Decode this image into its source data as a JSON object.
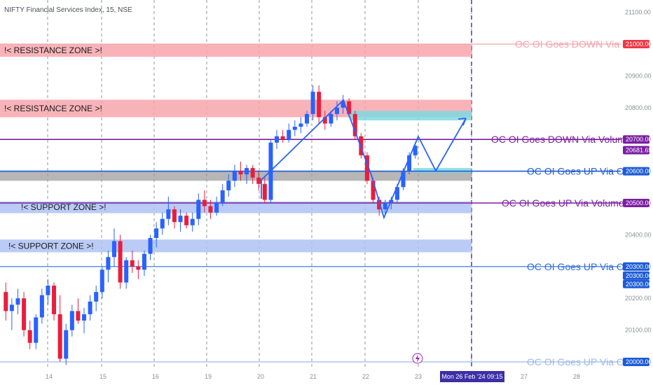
{
  "title": "NIFTY Financial Services Index, 15, NSE",
  "chart_data": {
    "type": "candlestick",
    "symbol": "NIFTY Financial Services Index",
    "interval": "15",
    "exchange": "NSE",
    "ylim": [
      20000,
      21150
    ],
    "y_ticks": [
      20000,
      20100,
      20200,
      20300,
      20400,
      20500,
      20600,
      20700,
      20800,
      20900,
      21000,
      21100
    ],
    "x_tick_labels": [
      "14",
      "15",
      "16",
      "19",
      "20",
      "21",
      "22",
      "23",
      "27",
      "28"
    ],
    "cursor_date_label": "Mon 26 Feb '24   09:15",
    "zones": [
      {
        "label": "!< RESISTANCE ZONE >!",
        "top": 21000,
        "bottom": 20960,
        "color": "#f7a6ad"
      },
      {
        "label": "!< RESISTANCE ZONE >!",
        "top": 20825,
        "bottom": 20770,
        "color": "#f7a6ad"
      },
      {
        "label": "!< SUPPORT ZONE >!",
        "top": 20505,
        "bottom": 20468,
        "color": "#aec2f5"
      },
      {
        "label": "!< SUPPORT ZONE >!",
        "top": 20385,
        "bottom": 20345,
        "color": "#aec2f5"
      }
    ],
    "levels": [
      {
        "label": "OC OI Goes DOWN Via OI",
        "value": 21000.0,
        "tag": "21000.00",
        "color": "#f4a3aa",
        "tag_color": "#f23645"
      },
      {
        "label": "OC OI Goes DOWN Via Volume",
        "value": 20700.0,
        "tag": "20700.00",
        "color": "#7b1fa2",
        "tag_color": "#7b1fa2"
      },
      {
        "label": "OC OI Goes UP  Via OI",
        "value": 20600.0,
        "tag": "20600.00",
        "color": "#1e5bd6",
        "tag_color": "#1e5bd6"
      },
      {
        "label": "OC OI Goes UP  Via Volume",
        "value": 20500.0,
        "tag": "20500.00",
        "color": "#7b1fa2",
        "tag_color": "#7b1fa2"
      },
      {
        "label": "OC OI Goes UP  Via OI",
        "value": 20300.0,
        "tag": "20300.00",
        "color": "#2d6be0",
        "tag_color": "#1e5bd6"
      },
      {
        "label": "OC OI Goes UP  Via OI",
        "value": 20000.0,
        "tag": "20000.00",
        "color": "#9db7ea",
        "tag_color": "#1e5bd6"
      }
    ],
    "last_price_tag": "20681.65",
    "extra_price_tags": [
      "20300.00",
      "20300.00"
    ],
    "candles_ohlc": [
      [
        20220,
        20250,
        20130,
        20160
      ],
      [
        20160,
        20200,
        20100,
        20180
      ],
      [
        20180,
        20230,
        20150,
        20200
      ],
      [
        20200,
        20220,
        20080,
        20100
      ],
      [
        20100,
        20130,
        20040,
        20060
      ],
      [
        20060,
        20150,
        20040,
        20140
      ],
      [
        20140,
        20230,
        20120,
        20210
      ],
      [
        20210,
        20260,
        20180,
        20240
      ],
      [
        20240,
        20250,
        20130,
        20150
      ],
      [
        20150,
        20210,
        20000,
        20010
      ],
      [
        20010,
        20120,
        19990,
        20100
      ],
      [
        20100,
        20180,
        20080,
        20160
      ],
      [
        20160,
        20200,
        20120,
        20130
      ],
      [
        20130,
        20170,
        20090,
        20150
      ],
      [
        20150,
        20210,
        20130,
        20190
      ],
      [
        20190,
        20240,
        20160,
        20220
      ],
      [
        20220,
        20300,
        20200,
        20290
      ],
      [
        20290,
        20350,
        20250,
        20330
      ],
      [
        20330,
        20420,
        20300,
        20380
      ],
      [
        20380,
        20400,
        20230,
        20250
      ],
      [
        20250,
        20330,
        20230,
        20320
      ],
      [
        20320,
        20350,
        20280,
        20300
      ],
      [
        20300,
        20320,
        20260,
        20290
      ],
      [
        20290,
        20350,
        20270,
        20340
      ],
      [
        20340,
        20400,
        20320,
        20390
      ],
      [
        20390,
        20440,
        20360,
        20420
      ],
      [
        20420,
        20470,
        20400,
        20450
      ],
      [
        20450,
        20520,
        20430,
        20480
      ],
      [
        20480,
        20490,
        20420,
        20440
      ],
      [
        20440,
        20480,
        20410,
        20460
      ],
      [
        20460,
        20470,
        20420,
        20430
      ],
      [
        20430,
        20470,
        20410,
        20450
      ],
      [
        20450,
        20530,
        20430,
        20510
      ],
      [
        20510,
        20540,
        20470,
        20490
      ],
      [
        20490,
        20510,
        20450,
        20470
      ],
      [
        20470,
        20520,
        20460,
        20500
      ],
      [
        20500,
        20560,
        20490,
        20540
      ],
      [
        20540,
        20590,
        20520,
        20570
      ],
      [
        20570,
        20620,
        20550,
        20600
      ],
      [
        20600,
        20630,
        20570,
        20590
      ],
      [
        20590,
        20620,
        20560,
        20610
      ],
      [
        20610,
        20620,
        20560,
        20580
      ],
      [
        20580,
        20600,
        20540,
        20560
      ],
      [
        20560,
        20580,
        20500,
        20510
      ],
      [
        20510,
        20700,
        20500,
        20690
      ],
      [
        20690,
        20730,
        20670,
        20710
      ],
      [
        20710,
        20730,
        20690,
        20700
      ],
      [
        20700,
        20750,
        20690,
        20730
      ],
      [
        20730,
        20760,
        20710,
        20740
      ],
      [
        20740,
        20770,
        20720,
        20750
      ],
      [
        20750,
        20790,
        20740,
        20780
      ],
      [
        20780,
        20870,
        20760,
        20850
      ],
      [
        20850,
        20870,
        20750,
        20770
      ],
      [
        20770,
        20790,
        20730,
        20750
      ],
      [
        20750,
        20790,
        20740,
        20780
      ],
      [
        20780,
        20820,
        20760,
        20800
      ],
      [
        20800,
        20840,
        20780,
        20820
      ],
      [
        20820,
        20830,
        20770,
        20780
      ],
      [
        20780,
        20790,
        20700,
        20710
      ],
      [
        20710,
        20720,
        20640,
        20650
      ],
      [
        20650,
        20660,
        20560,
        20570
      ],
      [
        20570,
        20580,
        20500,
        20510
      ],
      [
        20510,
        20520,
        20460,
        20480
      ],
      [
        20480,
        20510,
        20460,
        20500
      ],
      [
        20500,
        20520,
        20480,
        20510
      ],
      [
        20510,
        20560,
        20500,
        20550
      ],
      [
        20550,
        20610,
        20540,
        20600
      ],
      [
        20600,
        20660,
        20590,
        20650
      ],
      [
        20650,
        20690,
        20640,
        20680
      ]
    ]
  },
  "icons": {
    "alert": "lightning-icon"
  }
}
